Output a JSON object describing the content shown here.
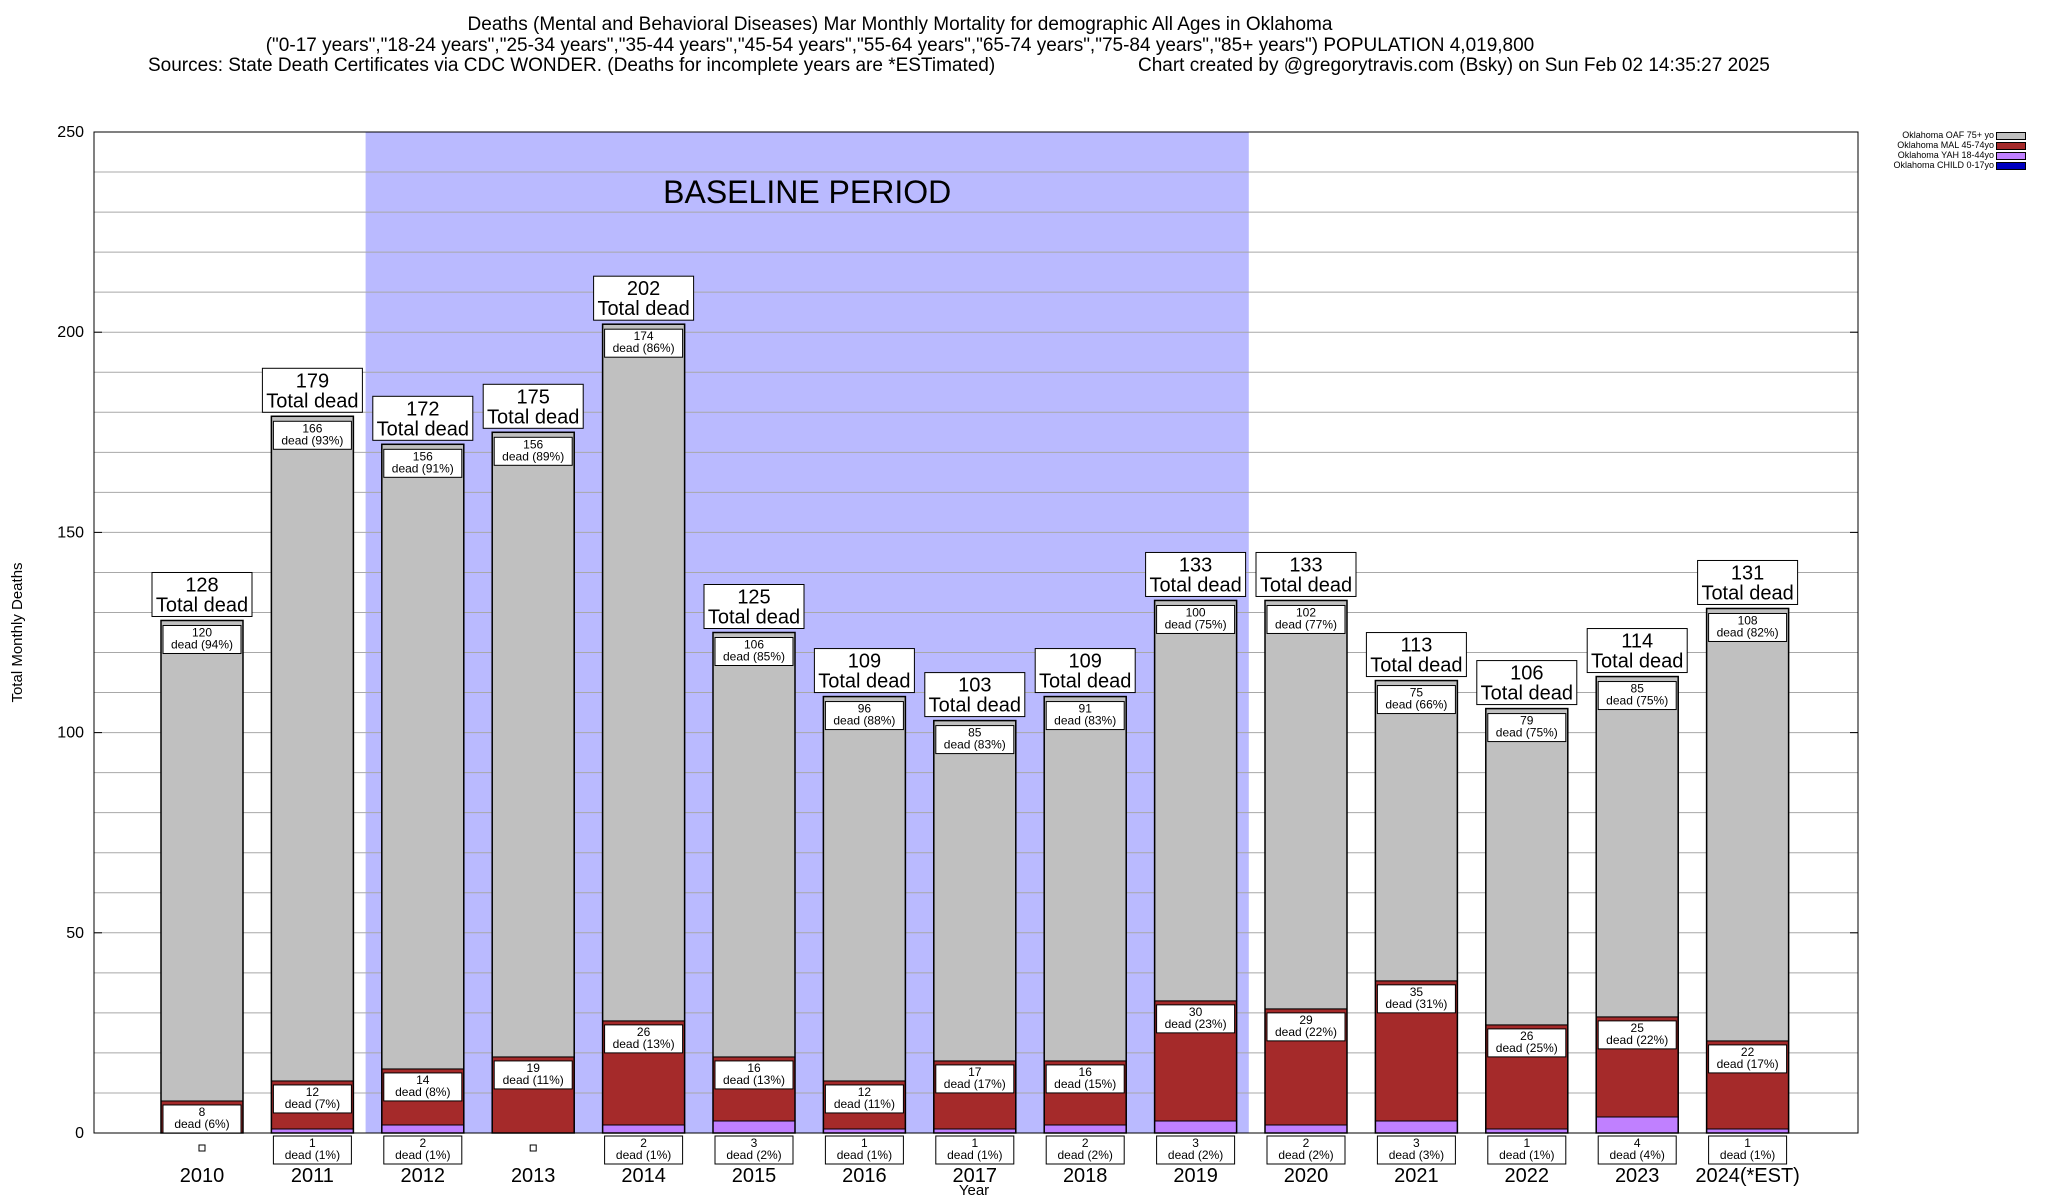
{
  "header": {
    "line1": "Deaths (Mental and Behavioral Diseases) Mar Monthly Mortality for demographic All Ages in Oklahoma",
    "line2": "(\"0-17 years\",\"18-24 years\",\"25-34 years\",\"35-44 years\",\"45-54 years\",\"55-64 years\",\"65-74 years\",\"75-84 years\",\"85+ years\") POPULATION 4,019,800",
    "line3a": "Sources: State Death Certificates via CDC WONDER. (Deaths for incomplete years are *ESTimated)",
    "line3b": "Chart created by @gregorytravis.com (Bsky) on Sun Feb 02 14:35:27 2025"
  },
  "legend": [
    {
      "label": "Oklahoma OAF 75+ yo",
      "color": "#c0c0c0"
    },
    {
      "label": "Oklahoma MAL 45-74yo",
      "color": "#a52a2a"
    },
    {
      "label": "Oklahoma YAH 18-44yo",
      "color": "#c080ff"
    },
    {
      "label": "Oklahoma CHILD 0-17yo",
      "color": "#0000c0"
    }
  ],
  "chart_data": {
    "type": "bar",
    "stacked": true,
    "xlabel": "Year",
    "ylabel": "Total Monthly Deaths",
    "ylim": [
      0,
      250
    ],
    "yticks": [
      0,
      50,
      100,
      150,
      200,
      250
    ],
    "grid": true,
    "legend_position": "top-right",
    "baseline_label": "BASELINE PERIOD",
    "baseline_range": [
      "2012",
      "2019"
    ],
    "total_suffix": "Total dead",
    "categories": [
      "2010",
      "2011",
      "2012",
      "2013",
      "2014",
      "2015",
      "2016",
      "2017",
      "2018",
      "2019",
      "2020",
      "2021",
      "2022",
      "2023",
      "2024(*EST)"
    ],
    "totals": [
      128,
      179,
      172,
      175,
      202,
      125,
      109,
      103,
      109,
      133,
      133,
      113,
      106,
      114,
      131
    ],
    "series": [
      {
        "name": "Oklahoma YAH 18-44yo",
        "color": "#c080ff",
        "values": [
          0,
          1,
          2,
          0,
          2,
          3,
          1,
          1,
          2,
          3,
          2,
          3,
          1,
          4,
          1
        ],
        "labels": [
          "",
          "1\ndead (1%)",
          "2\ndead (1%)",
          "",
          "2\ndead (1%)",
          "3\ndead (2%)",
          "1\ndead (1%)",
          "1\ndead (1%)",
          "2\ndead (2%)",
          "3\ndead (2%)",
          "2\ndead (2%)",
          "3\ndead (3%)",
          "1\ndead (1%)",
          "4\ndead (4%)",
          "1\ndead (1%)"
        ]
      },
      {
        "name": "Oklahoma MAL 45-74yo",
        "color": "#a52a2a",
        "values": [
          8,
          12,
          14,
          19,
          26,
          16,
          12,
          17,
          16,
          30,
          29,
          35,
          26,
          25,
          22
        ],
        "labels": [
          "8\ndead (6%)",
          "12\ndead (7%)",
          "14\ndead (8%)",
          "19\ndead (11%)",
          "26\ndead (13%)",
          "16\ndead (13%)",
          "12\ndead (11%)",
          "17\ndead (17%)",
          "16\ndead (15%)",
          "30\ndead (23%)",
          "29\ndead (22%)",
          "35\ndead (31%)",
          "26\ndead (25%)",
          "25\ndead (22%)",
          "22\ndead (17%)"
        ]
      },
      {
        "name": "Oklahoma OAF 75+ yo",
        "color": "#c0c0c0",
        "values": [
          120,
          166,
          156,
          156,
          174,
          106,
          96,
          85,
          91,
          100,
          102,
          75,
          79,
          85,
          108
        ],
        "labels": [
          "120\ndead (94%)",
          "166\ndead (93%)",
          "156\ndead (91%)",
          "156\ndead (89%)",
          "174\ndead (86%)",
          "106\ndead (85%)",
          "96\ndead (88%)",
          "85\ndead (83%)",
          "91\ndead (83%)",
          "100\ndead (75%)",
          "102\ndead (77%)",
          "75\ndead (66%)",
          "79\ndead (75%)",
          "85\ndead (75%)",
          "108\ndead (82%)"
        ]
      }
    ]
  }
}
